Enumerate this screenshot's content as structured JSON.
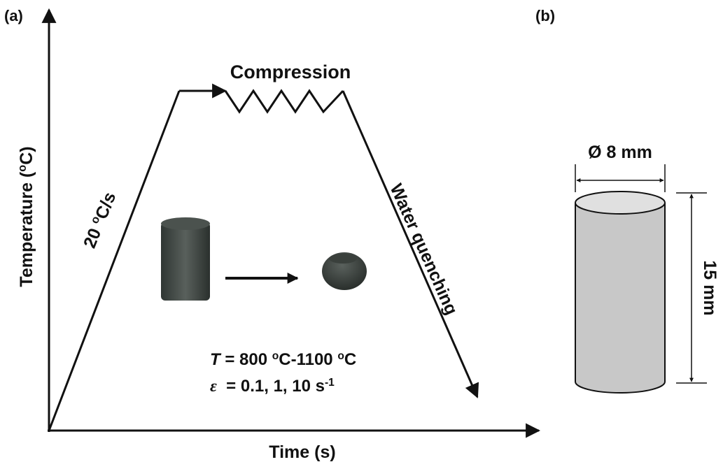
{
  "panel_a": {
    "label": "(a)",
    "x_axis_label": "Time (s)",
    "y_axis_label": {
      "before": "Temperature (",
      "sup": "o",
      "after": "C)"
    },
    "heating_rate": {
      "before": "20 ",
      "sup": "o",
      "after": "C/s"
    },
    "stage_compression": "Compression",
    "stage_quench": "Water quenching",
    "temperature_range": {
      "symbol": "T",
      "eq": " = 800 ",
      "sup1": "o",
      "mid": "C-1100 ",
      "sup2": "o",
      "after": "C"
    },
    "strain_rate": {
      "symbol": "ε",
      "eq": "  = 0.1, 1, 10 s",
      "sup": "-1"
    }
  },
  "panel_b": {
    "label": "(b)",
    "diameter": "Ø 8 mm",
    "height": "15 mm"
  }
}
